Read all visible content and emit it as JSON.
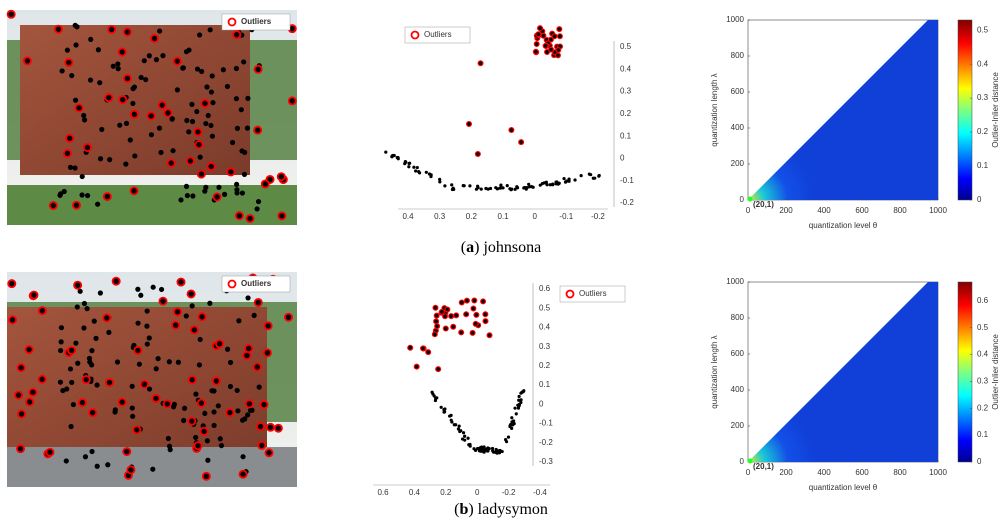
{
  "figures": [
    {
      "caption": {
        "label": "(a)",
        "name": "johnsona"
      },
      "photo": {
        "legend": "Outliers"
      },
      "scatter": {
        "legend": "Outliers",
        "xticks": [
          0.4,
          0.3,
          0.2,
          0.1,
          0,
          -0.1,
          -0.2
        ],
        "yticks": [
          0.5,
          0.4,
          0.3,
          0.2,
          0.1,
          0,
          -0.1,
          -0.2
        ]
      },
      "heatmap": {
        "xlabel": "quantization level θ",
        "ylabel": "quantization length λ",
        "xticks": [
          0,
          200,
          400,
          600,
          800,
          1000
        ],
        "yticks": [
          0,
          200,
          400,
          600,
          800,
          1000
        ],
        "annotation": "(20,1)",
        "colorbar": {
          "label": "Outlier-Inlier distance",
          "clim": [
            0,
            0.53
          ],
          "ticks": [
            0,
            0.1,
            0.2,
            0.3,
            0.4,
            0.5
          ]
        }
      }
    },
    {
      "caption": {
        "label": "(b)",
        "name": "ladysymon"
      },
      "photo": {
        "legend": "Outliers"
      },
      "scatter": {
        "legend": "Outliers",
        "xticks": [
          0.6,
          0.4,
          0.2,
          0,
          -0.2,
          -0.4
        ],
        "yticks": [
          0.6,
          0.5,
          0.4,
          0.3,
          0.2,
          0.1,
          0,
          -0.1,
          -0.2,
          -0.3
        ]
      },
      "heatmap": {
        "xlabel": "quantization level θ",
        "ylabel": "quantization length λ",
        "xticks": [
          0,
          200,
          400,
          600,
          800,
          1000
        ],
        "yticks": [
          0,
          200,
          400,
          600,
          800,
          1000
        ],
        "annotation": "(20,1)",
        "colorbar": {
          "label": "Outlier-Inlier distance",
          "clim": [
            0,
            0.67
          ],
          "ticks": [
            0,
            0.1,
            0.2,
            0.3,
            0.4,
            0.5,
            0.6
          ]
        }
      }
    }
  ]
}
